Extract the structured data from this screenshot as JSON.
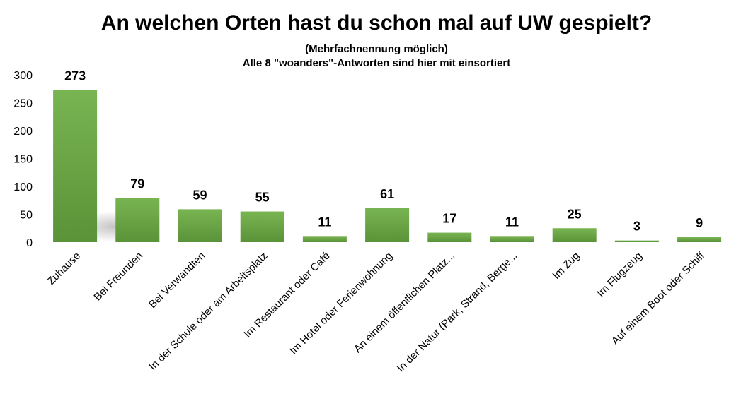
{
  "chart_data": {
    "type": "bar",
    "title": "An welchen Orten hast du schon mal auf UW gespielt?",
    "subtitle_lines": [
      "(Mehrfachnennung möglich)",
      "Alle 8 \"woanders\"-Antworten sind hier mit einsortiert"
    ],
    "categories": [
      "Zuhause",
      "Bei Freunden",
      "Bei Verwandten",
      "In der Schule oder am Arbeitsplatz",
      "Im Restaurant oder Café",
      "Im Hotel oder Ferienwohnung",
      "An einem öffentlichen Platz...",
      "In der Natur (Park, Strand, Berge...",
      "Im Zug",
      "Im Flugzeug",
      "Auf einem Boot oder Schiff"
    ],
    "values": [
      273,
      79,
      59,
      55,
      11,
      61,
      17,
      11,
      25,
      3,
      9
    ],
    "ylim": [
      0,
      300
    ],
    "yticks": [
      0,
      50,
      100,
      150,
      200,
      250,
      300
    ],
    "grid": false,
    "legend": "none",
    "colors": {
      "bar_top": "#79b452",
      "bar_bottom": "#5a9338",
      "shadow": "#bdbdbd"
    }
  }
}
